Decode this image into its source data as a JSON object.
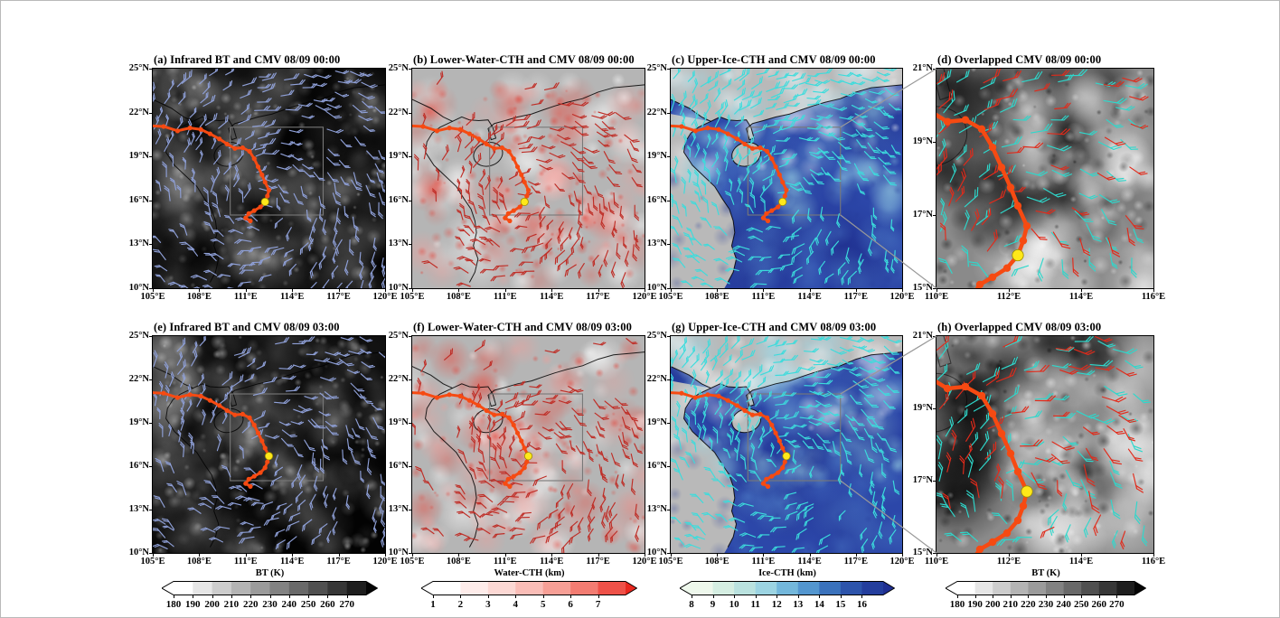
{
  "figure": {
    "background": "#ffffff",
    "axes": {
      "large": {
        "x_ticks": [
          "105°E",
          "108°E",
          "111°E",
          "114°E",
          "117°E",
          "120°E"
        ],
        "y_ticks": [
          "25°N",
          "22°N",
          "19°N",
          "16°N",
          "13°N",
          "10°N"
        ],
        "x_range": [
          105,
          120
        ],
        "y_range": [
          10,
          25
        ]
      },
      "small": {
        "x_ticks": [
          "110°E",
          "112°E",
          "114°E",
          "116°E"
        ],
        "y_ticks": [
          "21°N",
          "19°N",
          "17°N",
          "15°N"
        ],
        "x_range": [
          110,
          116
        ],
        "y_range": [
          15,
          21
        ]
      }
    },
    "panels": [
      {
        "id": "a",
        "title": "(a) Infrared BT and CMV 08/09 00:00",
        "style": "ir",
        "axes": "large",
        "row": 0,
        "col": 0,
        "seed": 11,
        "box": true
      },
      {
        "id": "b",
        "title": "(b) Lower-Water-CTH and CMV 08/09 00:00",
        "style": "water",
        "axes": "large",
        "row": 0,
        "col": 1,
        "seed": 22,
        "box": true
      },
      {
        "id": "c",
        "title": "(c) Upper-Ice-CTH and CMV 08/09 00:00",
        "style": "ice",
        "axes": "large",
        "row": 0,
        "col": 2,
        "seed": 33,
        "box": true
      },
      {
        "id": "d",
        "title": "(d) Overlapped CMV 08/09 00:00",
        "style": "overlap",
        "axes": "small",
        "row": 0,
        "col": 3,
        "seed": 44,
        "box": false
      },
      {
        "id": "e",
        "title": "(e) Infrared BT and CMV 08/09 03:00",
        "style": "ir",
        "axes": "large",
        "row": 1,
        "col": 0,
        "seed": 55,
        "box": true
      },
      {
        "id": "f",
        "title": "(f) Lower-Water-CTH and CMV 08/09 03:00",
        "style": "water",
        "axes": "large",
        "row": 1,
        "col": 1,
        "seed": 66,
        "box": true
      },
      {
        "id": "g",
        "title": "(g) Upper-Ice-CTH and CMV 08/09 03:00",
        "style": "ice",
        "axes": "large",
        "row": 1,
        "col": 2,
        "seed": 77,
        "box": true
      },
      {
        "id": "h",
        "title": "(h) Overlapped CMV 08/09 03:00",
        "style": "overlap",
        "axes": "small",
        "row": 1,
        "col": 3,
        "seed": 88,
        "box": false
      }
    ],
    "colorbars": [
      {
        "title": "BT (K)",
        "ticks": [
          "180",
          "190",
          "200",
          "210",
          "220",
          "230",
          "240",
          "250",
          "260",
          "270"
        ],
        "palette": [
          "#ffffff",
          "#050505"
        ],
        "col": 0
      },
      {
        "title": "Water-CTH (km)",
        "ticks": [
          "1",
          "2",
          "3",
          "4",
          "5",
          "6",
          "7"
        ],
        "palette": [
          "#ffffff",
          "#fcd2cd",
          "#f58a80",
          "#e9271e"
        ],
        "col": 1
      },
      {
        "title": "Ice-CTH (km)",
        "ticks": [
          "8",
          "9",
          "10",
          "11",
          "12",
          "13",
          "14",
          "15",
          "16"
        ],
        "palette": [
          "#eef8ec",
          "#c9e9dd",
          "#9cd4e2",
          "#5fa8d8",
          "#3a72bc",
          "#2745a2",
          "#1f2f92"
        ],
        "col": 2
      },
      {
        "title": "BT (K)",
        "ticks": [
          "180",
          "190",
          "200",
          "210",
          "220",
          "230",
          "240",
          "250",
          "260",
          "270"
        ],
        "palette": [
          "#ffffff",
          "#050505"
        ],
        "col": 3
      }
    ],
    "colors": {
      "track": "#f64a12",
      "current_marker": "#ffe81a",
      "inset_box": "#787878",
      "connector_line": "#999999",
      "coastline": "#000000",
      "ir_barb": "#8fa0d8",
      "water_barb": "#bf2d26",
      "ice_barb": "#3cdcdc",
      "overlap_barb_upper": "#2ed8cc",
      "overlap_barb_lower": "#e22a1a"
    },
    "track": {
      "points": [
        [
          104.7,
          21.1
        ],
        [
          105.7,
          21.05
        ],
        [
          106.6,
          20.75
        ],
        [
          107.4,
          20.95
        ],
        [
          108.1,
          20.85
        ],
        [
          108.7,
          20.55
        ],
        [
          109.3,
          20.2
        ],
        [
          109.8,
          19.85
        ],
        [
          110.3,
          19.55
        ],
        [
          110.8,
          19.6
        ],
        [
          111.25,
          19.35
        ],
        [
          111.55,
          18.85
        ],
        [
          111.8,
          18.3
        ],
        [
          112.05,
          17.75
        ],
        [
          112.25,
          17.25
        ],
        [
          112.5,
          16.7
        ],
        [
          112.4,
          16.3
        ],
        [
          112.25,
          15.9
        ],
        [
          111.95,
          15.55
        ],
        [
          111.55,
          15.3
        ],
        [
          111.2,
          15.1
        ],
        [
          111.0,
          14.8
        ],
        [
          111.3,
          14.6
        ]
      ],
      "current_00": [
        112.25,
        15.9
      ],
      "current_03": [
        112.5,
        16.7
      ]
    }
  },
  "chart_data": [
    {
      "panel": "a",
      "type": "heatmap",
      "title": "(a) Infrared BT and CMV 08/09 00:00",
      "variable": "Infrared brightness temperature with cloud motion vectors",
      "units": "K",
      "value_range": [
        180,
        275
      ],
      "xlim": [
        105,
        120
      ],
      "ylim": [
        10,
        25
      ],
      "x_ticks": [
        "105°E",
        "108°E",
        "111°E",
        "114°E",
        "117°E",
        "120°E"
      ],
      "y_ticks": [
        "10°N",
        "13°N",
        "16°N",
        "19°N",
        "22°N",
        "25°N"
      ],
      "colorbar_title": "BT (K)",
      "colorbar_ticks": [
        180,
        190,
        200,
        210,
        220,
        230,
        240,
        250,
        260,
        270
      ],
      "overlays": [
        "blue wind barbs (CMV)",
        "orange typhoon track dots",
        "yellow current position ~112.3°E 15.9°N",
        "gray inset box 110-116°E 15-21°N"
      ]
    },
    {
      "panel": "b",
      "type": "heatmap",
      "title": "(b) Lower-Water-CTH and CMV 08/09 00:00",
      "variable": "Lower water cloud-top height with cloud motion vectors",
      "units": "km",
      "value_range": [
        1,
        8
      ],
      "xlim": [
        105,
        120
      ],
      "ylim": [
        10,
        25
      ],
      "x_ticks": [
        "105°E",
        "108°E",
        "111°E",
        "114°E",
        "117°E",
        "120°E"
      ],
      "y_ticks": [
        "10°N",
        "13°N",
        "16°N",
        "19°N",
        "22°N",
        "25°N"
      ],
      "colorbar_title": "Water-CTH (km)",
      "colorbar_ticks": [
        1,
        2,
        3,
        4,
        5,
        6,
        7
      ],
      "overlays": [
        "dark red wind barbs (CMV)",
        "orange typhoon track dots",
        "yellow current position",
        "gray inset box 110-116°E 15-21°N"
      ]
    },
    {
      "panel": "c",
      "type": "heatmap",
      "title": "(c) Upper-Ice-CTH and CMV 08/09 00:00",
      "variable": "Upper ice cloud-top height with cloud motion vectors",
      "units": "km",
      "value_range": [
        8,
        17
      ],
      "xlim": [
        105,
        120
      ],
      "ylim": [
        10,
        25
      ],
      "x_ticks": [
        "105°E",
        "108°E",
        "111°E",
        "114°E",
        "117°E",
        "120°E"
      ],
      "y_ticks": [
        "10°N",
        "13°N",
        "16°N",
        "19°N",
        "22°N",
        "25°N"
      ],
      "colorbar_title": "Ice-CTH (km)",
      "colorbar_ticks": [
        8,
        9,
        10,
        11,
        12,
        13,
        14,
        15,
        16
      ],
      "overlays": [
        "cyan wind barbs (CMV)",
        "orange typhoon track dots",
        "yellow current position",
        "gray inset box connected by leader lines to panel (d)"
      ]
    },
    {
      "panel": "d",
      "type": "heatmap",
      "title": "(d) Overlapped CMV 08/09 00:00",
      "variable": "Infrared BT background with overlapped upper (cyan) and lower (red) cloud motion vectors",
      "units": "K",
      "value_range": [
        180,
        275
      ],
      "xlim": [
        110,
        116
      ],
      "ylim": [
        15,
        21
      ],
      "x_ticks": [
        "110°E",
        "112°E",
        "114°E",
        "116°E"
      ],
      "y_ticks": [
        "15°N",
        "17°N",
        "19°N",
        "21°N"
      ],
      "colorbar_title": "BT (K)",
      "colorbar_ticks": [
        180,
        190,
        200,
        210,
        220,
        230,
        240,
        250,
        260,
        270
      ],
      "overlays": [
        "red lower-level wind barbs",
        "cyan upper-level wind barbs",
        "orange typhoon track dots",
        "yellow current position ~112.3°E 15.9°N"
      ]
    },
    {
      "panel": "e",
      "type": "heatmap",
      "title": "(e) Infrared BT and CMV 08/09 03:00",
      "variable": "Infrared brightness temperature with cloud motion vectors",
      "units": "K",
      "value_range": [
        180,
        275
      ],
      "xlim": [
        105,
        120
      ],
      "ylim": [
        10,
        25
      ],
      "x_ticks": [
        "105°E",
        "108°E",
        "111°E",
        "114°E",
        "117°E",
        "120°E"
      ],
      "y_ticks": [
        "10°N",
        "13°N",
        "16°N",
        "19°N",
        "22°N",
        "25°N"
      ],
      "colorbar_title": "BT (K)",
      "colorbar_ticks": [
        180,
        190,
        200,
        210,
        220,
        230,
        240,
        250,
        260,
        270
      ],
      "overlays": [
        "blue wind barbs (CMV)",
        "orange typhoon track dots",
        "yellow current position ~112.5°E 16.7°N",
        "gray inset box 110-116°E 15-21°N"
      ]
    },
    {
      "panel": "f",
      "type": "heatmap",
      "title": "(f) Lower-Water-CTH and CMV 08/09 03:00",
      "variable": "Lower water cloud-top height with cloud motion vectors",
      "units": "km",
      "value_range": [
        1,
        8
      ],
      "xlim": [
        105,
        120
      ],
      "ylim": [
        10,
        25
      ],
      "x_ticks": [
        "105°E",
        "108°E",
        "111°E",
        "114°E",
        "117°E",
        "120°E"
      ],
      "y_ticks": [
        "10°N",
        "13°N",
        "16°N",
        "19°N",
        "22°N",
        "25°N"
      ],
      "colorbar_title": "Water-CTH (km)",
      "colorbar_ticks": [
        1,
        2,
        3,
        4,
        5,
        6,
        7
      ],
      "overlays": [
        "dark red wind barbs (CMV)",
        "orange typhoon track dots",
        "yellow current position",
        "gray inset box 110-116°E 15-21°N"
      ]
    },
    {
      "panel": "g",
      "type": "heatmap",
      "title": "(g) Upper-Ice-CTH and CMV 08/09 03:00",
      "variable": "Upper ice cloud-top height with cloud motion vectors",
      "units": "km",
      "value_range": [
        8,
        17
      ],
      "xlim": [
        105,
        120
      ],
      "ylim": [
        10,
        25
      ],
      "x_ticks": [
        "105°E",
        "108°E",
        "111°E",
        "114°E",
        "117°E",
        "120°E"
      ],
      "y_ticks": [
        "10°N",
        "13°N",
        "16°N",
        "19°N",
        "22°N",
        "25°N"
      ],
      "colorbar_title": "Ice-CTH (km)",
      "colorbar_ticks": [
        8,
        9,
        10,
        11,
        12,
        13,
        14,
        15,
        16
      ],
      "overlays": [
        "cyan wind barbs (CMV)",
        "orange typhoon track dots",
        "yellow current position",
        "gray inset box connected by leader lines to panel (h)"
      ]
    },
    {
      "panel": "h",
      "type": "heatmap",
      "title": "(h) Overlapped CMV 08/09 03:00",
      "variable": "Infrared BT background with overlapped upper (cyan) and lower (red) cloud motion vectors",
      "units": "K",
      "value_range": [
        180,
        275
      ],
      "xlim": [
        110,
        116
      ],
      "ylim": [
        15,
        21
      ],
      "x_ticks": [
        "110°E",
        "112°E",
        "114°E",
        "116°E"
      ],
      "y_ticks": [
        "15°N",
        "17°N",
        "19°N",
        "21°N"
      ],
      "colorbar_title": "BT (K)",
      "colorbar_ticks": [
        180,
        190,
        200,
        210,
        220,
        230,
        240,
        250,
        260,
        270
      ],
      "overlays": [
        "red lower-level wind barbs",
        "cyan upper-level wind barbs",
        "orange typhoon track dots",
        "yellow current position ~112.5°E 16.7°N"
      ]
    }
  ]
}
